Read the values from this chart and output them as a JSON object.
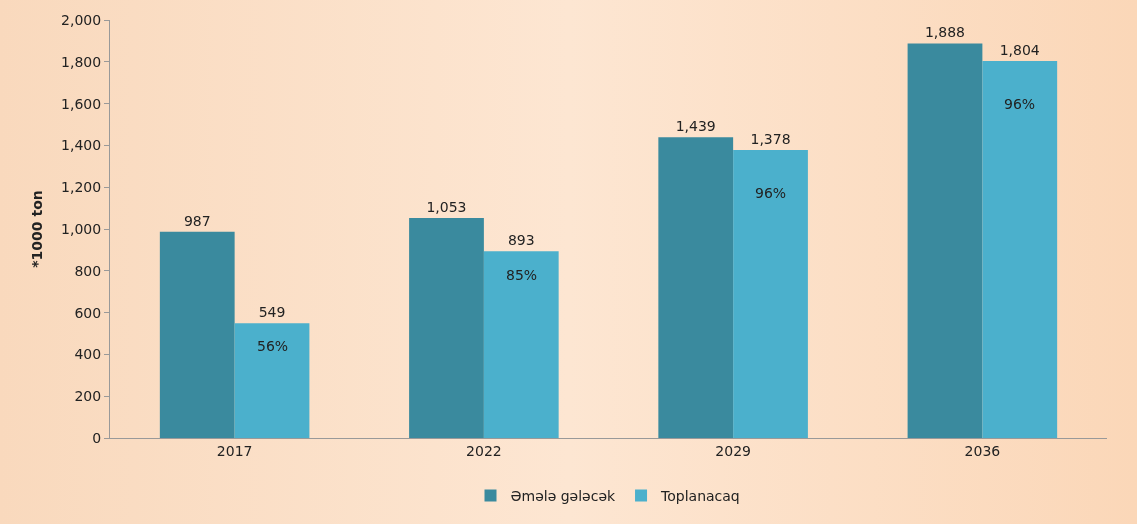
{
  "chart_data": {
    "type": "bar",
    "ylabel": "*1000 ton",
    "categories": [
      "2017",
      "2022",
      "2029",
      "2036"
    ],
    "series": [
      {
        "name": "Əmələ gələcək",
        "color": "#3a8a9e",
        "values": [
          987,
          1053,
          1439,
          1888
        ],
        "value_labels": [
          "987",
          "1,053",
          "1,439",
          "1,888"
        ]
      },
      {
        "name": "Toplanacaq",
        "color": "#4bb0cc",
        "values": [
          549,
          893,
          1378,
          1804
        ],
        "value_labels": [
          "549",
          "893",
          "1,378",
          "1,804"
        ]
      }
    ],
    "ylim": [
      0,
      2000
    ],
    "yticks": [
      0,
      {
        "value": 200,
        "label": "200"
      },
      {
        "value": 400,
        "label": "400"
      },
      {
        "value": 600,
        "label": "600"
      },
      {
        "value": 800,
        "label": "800"
      },
      {
        "value": 1000,
        "label": "1,000"
      },
      {
        "value": 1200,
        "label": "1,200"
      },
      {
        "value": 1400,
        "label": "1,400"
      },
      {
        "value": 1600,
        "label": "1,600"
      },
      {
        "value": 1800,
        "label": "1,800"
      },
      {
        "value": 2000,
        "label": "2,000"
      }
    ],
    "grid": false,
    "legend": "bottom",
    "annotations": [
      {
        "text": "56%",
        "x": "2017",
        "y": 440
      },
      {
        "text": "85%",
        "x": "2022",
        "y": 780
      },
      {
        "text": "96%",
        "x": "2029",
        "y": 1170
      },
      {
        "text": "96%",
        "x": "2036",
        "y": 1600
      }
    ]
  }
}
